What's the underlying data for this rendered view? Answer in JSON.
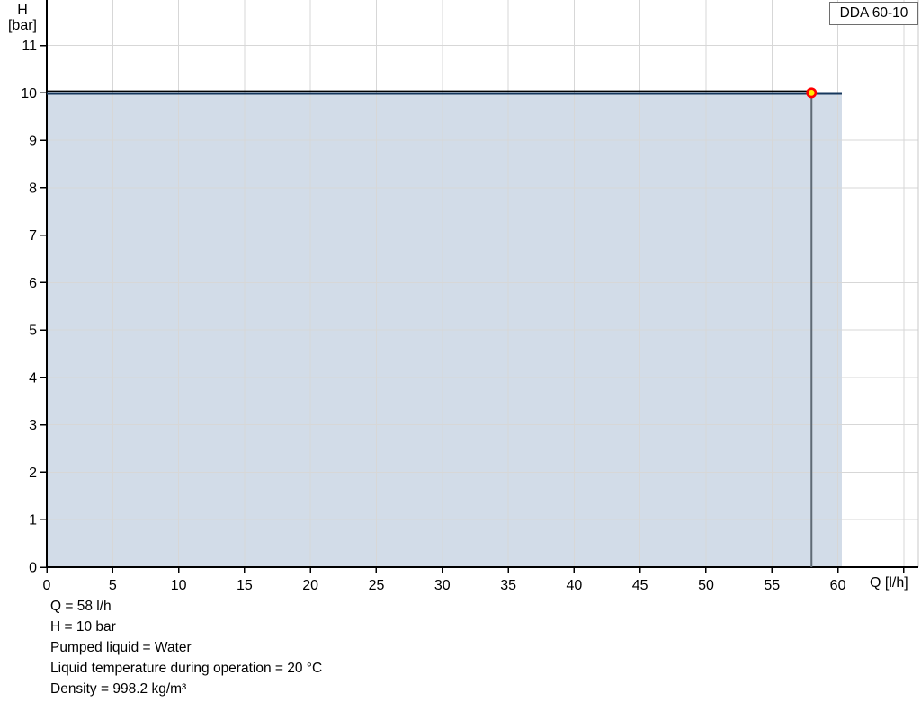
{
  "header": {
    "model_label": "DDA 60-10"
  },
  "chart_data": {
    "type": "area",
    "title": "DDA 60-10",
    "xlabel": "Q [l/h]",
    "ylabel_line1": "H",
    "ylabel_line2": "[bar]",
    "xlim": [
      0,
      66.1
    ],
    "ylim": [
      0,
      11.96
    ],
    "x_ticks": [
      0,
      5,
      10,
      15,
      20,
      25,
      30,
      35,
      40,
      45,
      50,
      55,
      60
    ],
    "x_unlabeled_ticks": [
      65
    ],
    "y_ticks": [
      0,
      1,
      2,
      3,
      4,
      5,
      6,
      7,
      8,
      9,
      10,
      11
    ],
    "grid": true,
    "legend_position": "top-right",
    "series": [
      {
        "name": "pump-curve",
        "x": [
          0,
          60.3
        ],
        "y": [
          10,
          10
        ],
        "line_color": "#16375d",
        "fill_color": "#d2dce8"
      }
    ],
    "operating_point": {
      "q": 58,
      "h": 10,
      "marker_fill": "#ffec00",
      "marker_stroke": "#ff0000",
      "guide_h_color": "#000000",
      "guide_v_color": "#5f6a75"
    },
    "colors": {
      "grid": "#d7d7d7",
      "axis": "#000000",
      "plot_right_border": "#c9c9c9",
      "background": "#ffffff"
    }
  },
  "annotations": {
    "lines": [
      "Q = 58 l/h",
      "H = 10 bar",
      "Pumped liquid = Water",
      "Liquid temperature during operation = 20 °C",
      "Density = 998.2 kg/m³"
    ]
  }
}
